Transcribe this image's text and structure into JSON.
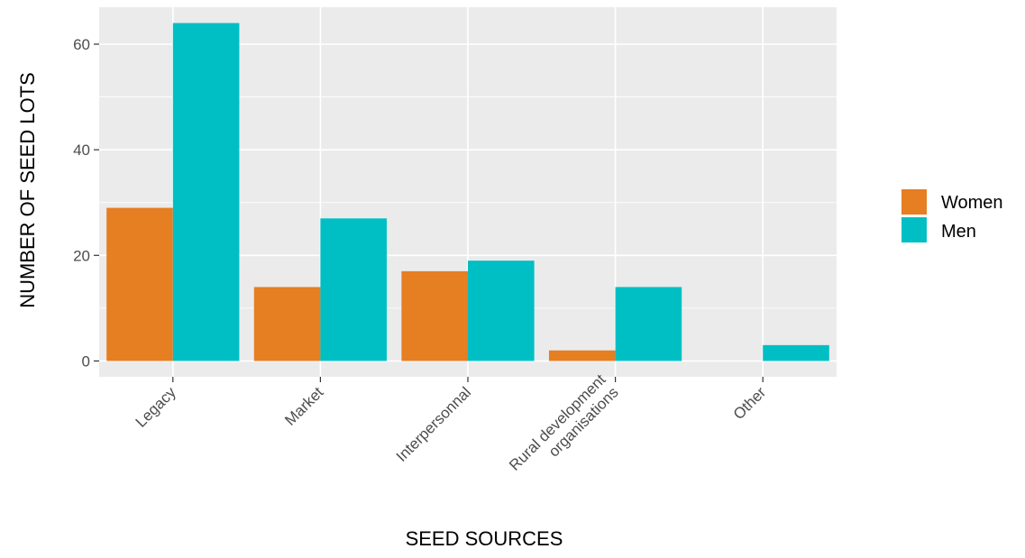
{
  "chart_data": {
    "type": "bar",
    "title": "",
    "xlabel": "SEED SOURCES",
    "ylabel": "NUMBER OF SEED LOTS",
    "categories": [
      [
        "Legacy"
      ],
      [
        "Market"
      ],
      [
        "Interpersonnal"
      ],
      [
        "Rural development",
        "organisations"
      ],
      [
        "Other"
      ]
    ],
    "series": [
      {
        "name": "Women",
        "color": "#E67E22",
        "values": [
          29,
          14,
          17,
          2,
          0
        ]
      },
      {
        "name": "Men",
        "color": "#00BFC4",
        "values": [
          64,
          27,
          19,
          14,
          3
        ]
      }
    ],
    "ylim": [
      -3,
      67
    ],
    "yticks": [
      0,
      20,
      40,
      60
    ],
    "grid": true,
    "legend_position": "right",
    "panel_background": "#EBEBEB",
    "grid_color": "#FFFFFF"
  }
}
